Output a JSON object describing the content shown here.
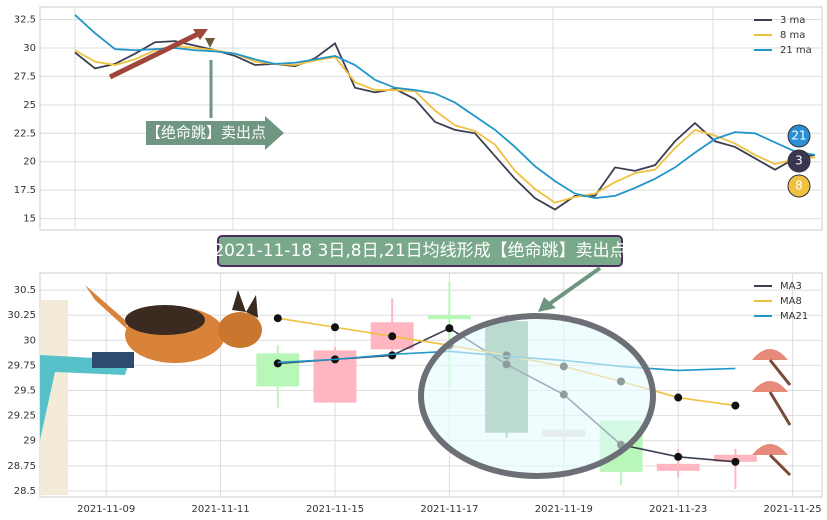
{
  "chart_data": [
    {
      "type": "line",
      "categories": [
        null,
        null,
        null,
        null,
        null,
        null,
        null,
        null,
        null,
        null,
        null,
        null,
        null,
        null,
        null,
        null,
        null,
        null,
        null,
        null,
        null,
        null,
        null,
        null,
        null,
        null,
        null,
        null,
        null,
        null,
        null,
        null,
        null,
        null,
        null,
        null,
        null,
        null
      ],
      "series": [
        {
          "name": "3 ma",
          "color": "#3b3f51",
          "values": [
            29.6,
            28.2,
            28.6,
            29.5,
            30.5,
            30.6,
            30.2,
            29.8,
            29.3,
            28.5,
            28.6,
            28.4,
            29.1,
            30.4,
            26.5,
            26.1,
            26.4,
            25.5,
            23.5,
            22.8,
            22.5,
            20.5,
            18.5,
            16.8,
            15.8,
            17.0,
            17.0,
            19.5,
            19.2,
            19.7,
            21.8,
            23.4,
            21.8,
            21.3,
            20.3,
            19.3,
            20.3,
            20.6
          ]
        },
        {
          "name": "8 ma",
          "color": "#f0c040",
          "values": [
            29.8,
            28.8,
            28.5,
            29.0,
            29.8,
            30.2,
            30.0,
            29.8,
            29.5,
            28.8,
            28.6,
            28.5,
            28.9,
            29.2,
            27.0,
            26.3,
            26.3,
            26.2,
            24.5,
            23.2,
            22.7,
            21.5,
            19.2,
            17.6,
            16.4,
            16.9,
            17.2,
            18.2,
            19.0,
            19.3,
            21.2,
            22.8,
            22.3,
            21.6,
            20.6,
            19.8,
            20.2,
            20.4
          ]
        },
        {
          "name": "21 ma",
          "color": "#2196c8",
          "values": [
            32.9,
            31.3,
            29.9,
            29.8,
            29.9,
            30.0,
            29.8,
            29.7,
            29.5,
            29.0,
            28.6,
            28.7,
            29.0,
            29.3,
            28.5,
            27.2,
            26.5,
            26.3,
            26.0,
            25.2,
            24.0,
            22.8,
            21.3,
            19.6,
            18.3,
            17.2,
            16.8,
            17.0,
            17.7,
            18.5,
            19.5,
            20.8,
            22.0,
            22.6,
            22.5,
            21.7,
            20.9,
            20.6
          ]
        }
      ],
      "ylim": [
        14.0,
        33.6
      ],
      "yticks": [
        15.0,
        17.5,
        20.0,
        22.5,
        25.0,
        27.5,
        30.0,
        32.5
      ],
      "grid": true,
      "legend": "upper right",
      "annotation": "【绝命跳】卖出点",
      "badges": [
        {
          "label": "21",
          "color": "#2a8fd4"
        },
        {
          "label": "3",
          "color": "#3a3550"
        },
        {
          "label": "8",
          "color": "#f0c040"
        }
      ]
    },
    {
      "type": "candlestick",
      "categories": [
        null,
        "2021-11-09",
        null,
        "2021-11-11",
        null,
        "2021-11-15",
        null,
        "2021-11-17",
        null,
        "2021-11-19",
        null,
        "2021-11-23",
        null,
        "2021-11-25"
      ],
      "open": [
        null,
        null,
        null,
        null,
        29.87,
        29.38,
        29.91,
        30.25,
        30.19,
        29.11,
        29.2,
        28.7,
        28.79,
        null
      ],
      "high": [
        null,
        null,
        null,
        null,
        29.95,
        29.93,
        30.42,
        30.58,
        30.25,
        29.33,
        29.2,
        28.92,
        28.92,
        null
      ],
      "low": [
        null,
        null,
        null,
        null,
        29.33,
        29.38,
        29.85,
        29.54,
        29.03,
        28.87,
        28.56,
        28.64,
        28.52,
        null
      ],
      "close": [
        null,
        null,
        null,
        null,
        29.54,
        29.9,
        30.18,
        30.21,
        29.08,
        29.04,
        28.69,
        28.77,
        28.86,
        null
      ],
      "candle_colors": [
        null,
        null,
        null,
        null,
        "#b8f7b8",
        "#ffb6c1",
        "#ffb6c1",
        "#b8f7b8",
        "#7aa88a",
        "#e3d6da",
        "#b8f7b8",
        "#ffb6c1",
        "#ffb6c1",
        null
      ],
      "series": [
        {
          "name": "MA3",
          "color": "#3b3f51",
          "values": [
            null,
            null,
            null,
            null,
            29.77,
            29.81,
            29.85,
            30.12,
            29.76,
            29.46,
            28.96,
            28.84,
            28.79,
            null
          ]
        },
        {
          "name": "MA8",
          "color": "#f0c040",
          "values": [
            null,
            null,
            null,
            null,
            30.22,
            30.13,
            30.04,
            29.95,
            29.85,
            29.74,
            29.59,
            29.43,
            29.35,
            null
          ]
        },
        {
          "name": "MA21",
          "color": "#2196c8",
          "values": [
            null,
            null,
            null,
            null,
            29.78,
            29.81,
            29.86,
            29.89,
            29.84,
            29.8,
            29.74,
            29.7,
            29.72,
            null
          ]
        }
      ],
      "ylim": [
        28.44,
        30.67
      ],
      "yticks": [
        28.5,
        28.75,
        29.0,
        29.25,
        29.5,
        29.75,
        30.0,
        30.25,
        30.5
      ],
      "grid": true,
      "legend": "upper right",
      "annotation": "2021-11-18 3日,8日,21日均线形成【绝命跳】卖出点"
    }
  ]
}
